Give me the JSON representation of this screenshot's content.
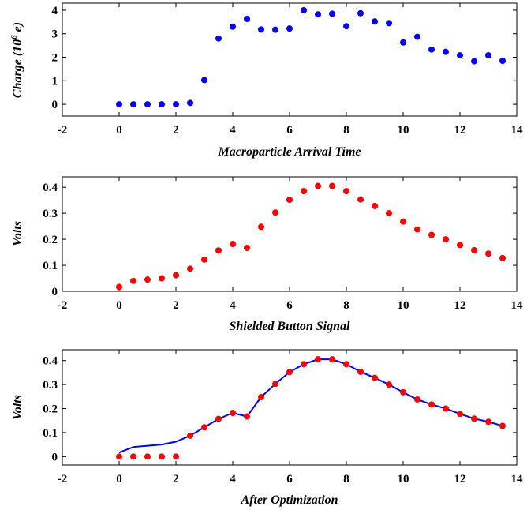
{
  "chart_data": [
    {
      "type": "scatter",
      "xlabel": "Macroparticle Arrival Time",
      "ylabel_main": "Charge (10",
      "ylabel_sup": "6",
      "ylabel_tail": " e)",
      "xlim": [
        -2,
        14
      ],
      "ylim": [
        -0.5,
        4.3
      ],
      "xticks": [
        -2,
        0,
        2,
        4,
        6,
        8,
        10,
        12,
        14
      ],
      "yticks": [
        0,
        1,
        2,
        3,
        4
      ],
      "tick_labels_x": [
        "-2",
        "0",
        "2",
        "4",
        "6",
        "8",
        "10",
        "12",
        "14"
      ],
      "tick_labels_y": [
        "0",
        "1",
        "2",
        "3",
        "4"
      ],
      "grid": false,
      "series": [
        {
          "color": "#0000ff",
          "marker": "circle",
          "x": [
            0,
            0.5,
            1,
            1.5,
            2,
            2.5,
            3,
            3.5,
            4,
            4.5,
            5,
            5.5,
            6,
            6.5,
            7,
            7.5,
            8,
            8.5,
            9,
            9.5,
            10,
            10.5,
            11,
            11.5,
            12,
            12.5,
            13,
            13.5
          ],
          "y": [
            0.0,
            0.0,
            0.0,
            0.0,
            0.0,
            0.06,
            1.03,
            2.8,
            3.3,
            3.63,
            3.18,
            3.17,
            3.22,
            4.0,
            3.82,
            3.85,
            3.32,
            3.87,
            3.52,
            3.45,
            2.63,
            2.87,
            2.33,
            2.23,
            2.08,
            1.83,
            2.08,
            1.85
          ]
        }
      ]
    },
    {
      "type": "scatter",
      "xlabel": "Shielded Button Signal",
      "ylabel": "Volts",
      "xlim": [
        -2,
        14
      ],
      "ylim": [
        0,
        0.44
      ],
      "xticks": [
        -2,
        0,
        2,
        4,
        6,
        8,
        10,
        12,
        14
      ],
      "yticks": [
        0,
        0.1,
        0.2,
        0.3,
        0.4
      ],
      "tick_labels_x": [
        "-2",
        "0",
        "2",
        "4",
        "6",
        "8",
        "10",
        "12",
        "14"
      ],
      "tick_labels_y": [
        "0",
        "0.1",
        "0.2",
        "0.3",
        "0.4"
      ],
      "grid": false,
      "series": [
        {
          "color": "#ff0000",
          "marker": "circle",
          "x": [
            0,
            0.5,
            1,
            1.5,
            2,
            2.5,
            3,
            3.5,
            4,
            4.5,
            5,
            5.5,
            6,
            6.5,
            7,
            7.5,
            8,
            8.5,
            9,
            9.5,
            10,
            10.5,
            11,
            11.5,
            12,
            12.5,
            13,
            13.5
          ],
          "y": [
            0.017,
            0.04,
            0.045,
            0.05,
            0.062,
            0.087,
            0.122,
            0.157,
            0.182,
            0.167,
            0.248,
            0.303,
            0.352,
            0.385,
            0.405,
            0.405,
            0.385,
            0.353,
            0.328,
            0.3,
            0.268,
            0.238,
            0.217,
            0.2,
            0.178,
            0.158,
            0.145,
            0.128
          ]
        }
      ]
    },
    {
      "type": "line",
      "xlabel": "After Optimization",
      "ylabel": "Volts",
      "xlim": [
        -2,
        14
      ],
      "ylim": [
        -0.035,
        0.445
      ],
      "xticks": [
        -2,
        0,
        2,
        4,
        6,
        8,
        10,
        12,
        14
      ],
      "yticks": [
        0,
        0.1,
        0.2,
        0.3,
        0.4
      ],
      "tick_labels_x": [
        "-2",
        "0",
        "2",
        "4",
        "6",
        "8",
        "10",
        "12",
        "14"
      ],
      "tick_labels_y": [
        "0",
        "0.1",
        "0.2",
        "0.3",
        "0.4"
      ],
      "grid": false,
      "series": [
        {
          "color": "#0000ff",
          "style": "line",
          "x": [
            0,
            0.5,
            1,
            1.5,
            2,
            2.5,
            3,
            3.5,
            4,
            4.5,
            5,
            5.5,
            6,
            6.5,
            7,
            7.5,
            8,
            8.5,
            9,
            9.5,
            10,
            10.5,
            11,
            11.5,
            12,
            12.5,
            13,
            13.5
          ],
          "y": [
            0.017,
            0.04,
            0.045,
            0.05,
            0.062,
            0.087,
            0.122,
            0.157,
            0.182,
            0.167,
            0.248,
            0.303,
            0.352,
            0.385,
            0.405,
            0.405,
            0.385,
            0.353,
            0.328,
            0.3,
            0.268,
            0.238,
            0.217,
            0.2,
            0.178,
            0.158,
            0.145,
            0.128
          ]
        },
        {
          "color": "#ff0000",
          "marker": "circle",
          "x": [
            0,
            0.5,
            1,
            1.5,
            2,
            2.5,
            3,
            3.5,
            4,
            4.5,
            5,
            5.5,
            6,
            6.5,
            7,
            7.5,
            8,
            8.5,
            9,
            9.5,
            10,
            10.5,
            11,
            11.5,
            12,
            12.5,
            13,
            13.5
          ],
          "y": [
            0,
            0,
            0,
            0,
            0,
            0.087,
            0.122,
            0.157,
            0.182,
            0.167,
            0.248,
            0.303,
            0.352,
            0.385,
            0.405,
            0.405,
            0.385,
            0.353,
            0.328,
            0.3,
            0.268,
            0.238,
            0.217,
            0.2,
            0.178,
            0.158,
            0.145,
            0.128
          ]
        }
      ]
    }
  ]
}
